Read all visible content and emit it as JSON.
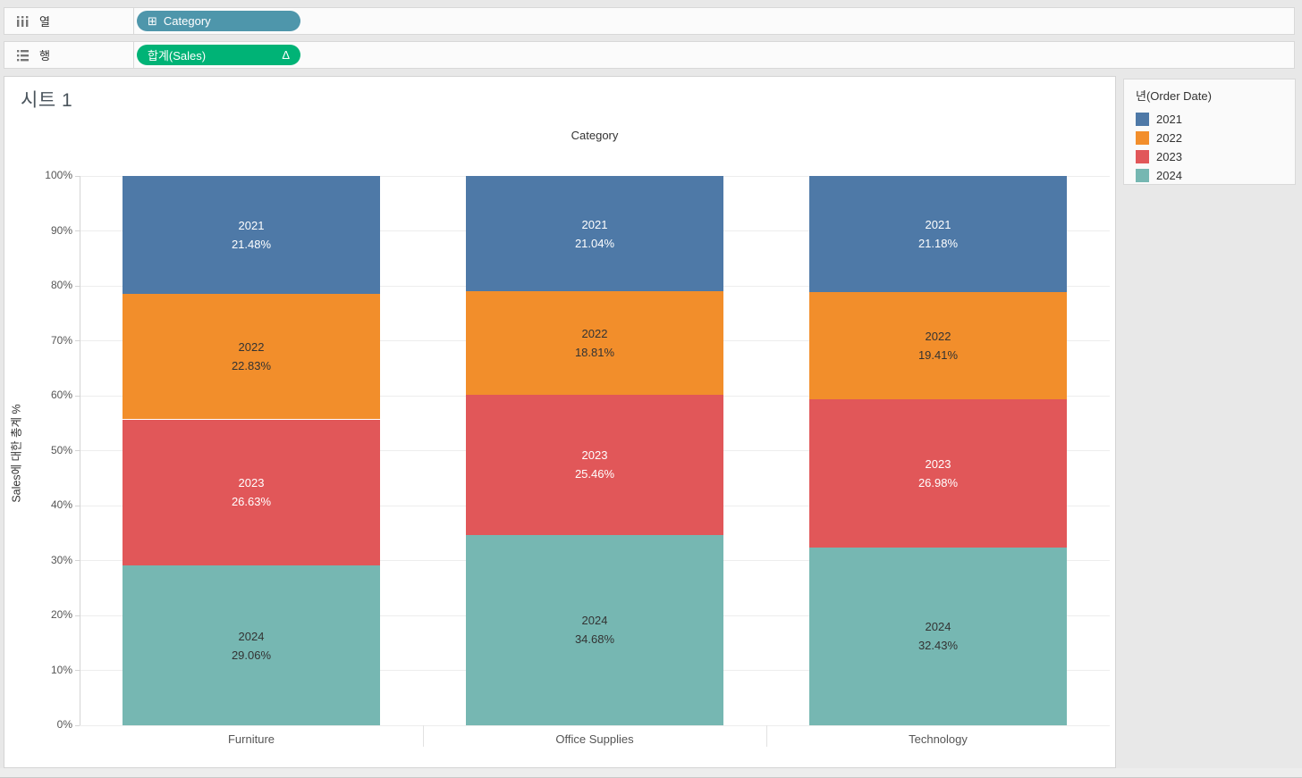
{
  "shelves": {
    "columns": {
      "label": "열",
      "pill": {
        "label": "Category",
        "prefix_icon": "⊞",
        "color": "#4e96ab"
      }
    },
    "rows": {
      "label": "행",
      "pill": {
        "label": "합계(Sales)",
        "suffix_icon": "Δ",
        "color": "#00b376"
      }
    }
  },
  "sheet": {
    "title": "시트 1"
  },
  "legend": {
    "title": "년(Order Date)",
    "items": [
      {
        "label": "2021",
        "color": "#4e79a7"
      },
      {
        "label": "2022",
        "color": "#f28e2b"
      },
      {
        "label": "2023",
        "color": "#e15759"
      },
      {
        "label": "2024",
        "color": "#76b7b2"
      }
    ]
  },
  "chart_data": {
    "type": "bar",
    "stacked": true,
    "percent_of_total": true,
    "title": "Category",
    "ylabel": "Sales에 대한 총계 %",
    "ylim": [
      0,
      100
    ],
    "grid": true,
    "legend_position": "right",
    "categories": [
      "Furniture",
      "Office Supplies",
      "Technology"
    ],
    "series": [
      {
        "name": "2021",
        "color": "#4e79a7",
        "values": [
          21.48,
          21.04,
          21.18
        ]
      },
      {
        "name": "2022",
        "color": "#f28e2b",
        "values": [
          22.83,
          18.81,
          19.41
        ]
      },
      {
        "name": "2023",
        "color": "#e15759",
        "values": [
          26.63,
          25.46,
          26.98
        ]
      },
      {
        "name": "2024",
        "color": "#76b7b2",
        "values": [
          29.06,
          34.68,
          32.43
        ]
      }
    ],
    "ytick_labels": [
      "0%",
      "10%",
      "20%",
      "30%",
      "40%",
      "50%",
      "60%",
      "70%",
      "80%",
      "90%",
      "100%"
    ]
  }
}
